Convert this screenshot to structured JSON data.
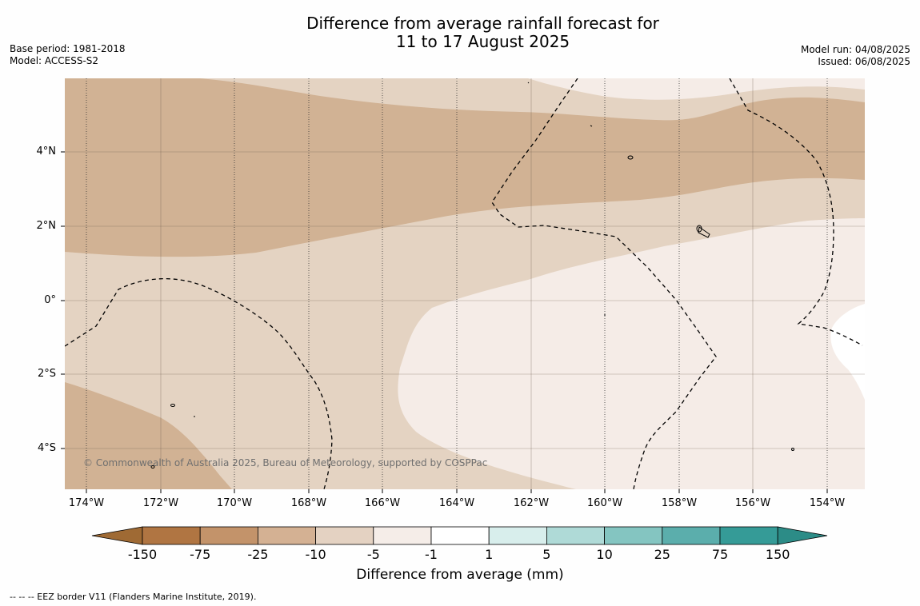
{
  "title_line1": "Difference from average rainfall forecast for",
  "title_line2": "11 to 17 August 2025",
  "base_period": "Base period: 1981-2018",
  "model": "Model: ACCESS-S2",
  "model_run": "Model run: 04/08/2025",
  "issued": "Issued: 06/08/2025",
  "copyright": "© Commonwealth of Australia 2025, Bureau of Meteorology, supported by COSPPac",
  "lat_labels": [
    "4°N",
    "2°N",
    "0°",
    "2°S",
    "4°S"
  ],
  "lon_labels": [
    "174°W",
    "172°W",
    "170°W",
    "168°W",
    "166°W",
    "164°W",
    "162°W",
    "160°W",
    "158°W",
    "156°W",
    "154°W"
  ],
  "colorbar": {
    "ticks": [
      "-150",
      "-75",
      "-25",
      "-10",
      "-5",
      "-1",
      "1",
      "5",
      "10",
      "25",
      "75",
      "150"
    ],
    "colors": [
      "#9f6a34",
      "#b07542",
      "#c3936a",
      "#d4b193",
      "#e4d2c2",
      "#f5ede8",
      "#ffffff",
      "#d8eeec",
      "#afdad7",
      "#84c5c1",
      "#5baeac",
      "#359b97",
      "#2c8c87"
    ],
    "label": "Difference from average (mm)"
  },
  "footer": "--  --  -- EEZ border V11 (Flanders Marine Institute, 2019).",
  "colors": {
    "band_-25_-10": "#d1b294",
    "band_-10_-5": "#e4d3c2",
    "band_-5_-1": "#f5ece7",
    "band_-1_1": "#ffffff"
  }
}
